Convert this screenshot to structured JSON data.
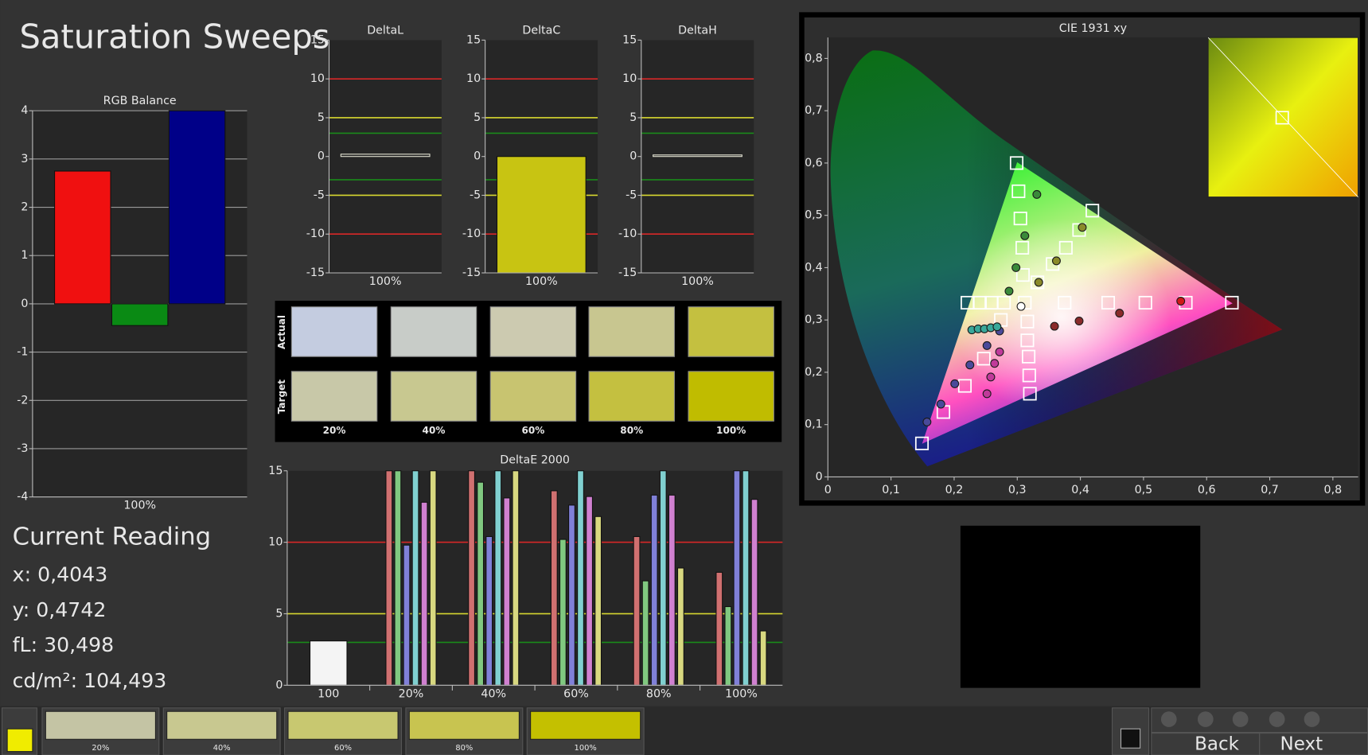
{
  "title": "Saturation Sweeps",
  "current_reading": {
    "title": "Current Reading",
    "lines": [
      "x: 0,4043",
      "y: 0,4742",
      "fL: 30,498",
      "cd/m²: 104,493"
    ]
  },
  "chart_data": [
    {
      "type": "bar",
      "title": "RGB Balance",
      "categories": [
        "100%"
      ],
      "series": [
        {
          "color": "#f01010",
          "values": [
            2.75
          ]
        },
        {
          "color": "#0a8a14",
          "values": [
            -0.45
          ]
        },
        {
          "color": "#000088",
          "values": [
            4
          ]
        }
      ],
      "ylim": [
        -4,
        4
      ],
      "yticks": [
        -4,
        -3,
        -2,
        -1,
        0,
        1,
        2,
        3,
        4
      ],
      "grid": true
    },
    {
      "type": "bar",
      "title": "DeltaL",
      "categories": [
        "100%"
      ],
      "values": [
        0.3
      ],
      "color": "#2a2a2a",
      "outline": "#e0e0d0",
      "ylim": [
        -15,
        15
      ],
      "yticks": [
        -15,
        -10,
        -5,
        0,
        5,
        10,
        15
      ],
      "grid": false,
      "reference_lines": [
        {
          "value": 10,
          "color": "#d82828"
        },
        {
          "value": 5,
          "color": "#d8d830"
        },
        {
          "value": 3,
          "color": "#1a8a1a"
        },
        {
          "value": -3,
          "color": "#1a8a1a"
        },
        {
          "value": -5,
          "color": "#d8d830"
        },
        {
          "value": -10,
          "color": "#d82828"
        }
      ]
    },
    {
      "type": "bar",
      "title": "DeltaC",
      "categories": [
        "100%"
      ],
      "values": [
        -15
      ],
      "color": "#c8c412",
      "outline": "#111111",
      "ylim": [
        -15,
        15
      ],
      "yticks": [
        -15,
        -10,
        -5,
        0,
        5,
        10,
        15
      ],
      "grid": false,
      "reference_lines": [
        {
          "value": 10,
          "color": "#d82828"
        },
        {
          "value": 5,
          "color": "#d8d830"
        },
        {
          "value": 3,
          "color": "#1a8a1a"
        },
        {
          "value": -3,
          "color": "#1a8a1a"
        },
        {
          "value": -5,
          "color": "#d8d830"
        },
        {
          "value": -10,
          "color": "#d82828"
        }
      ]
    },
    {
      "type": "bar",
      "title": "DeltaH",
      "categories": [
        "100%"
      ],
      "values": [
        0.2
      ],
      "color": "#2a2a2a",
      "outline": "#e0e0d0",
      "ylim": [
        -15,
        15
      ],
      "yticks": [
        -15,
        -10,
        -5,
        0,
        5,
        10,
        15
      ],
      "grid": false,
      "reference_lines": [
        {
          "value": 10,
          "color": "#d82828"
        },
        {
          "value": 5,
          "color": "#d8d830"
        },
        {
          "value": 3,
          "color": "#1a8a1a"
        },
        {
          "value": -3,
          "color": "#1a8a1a"
        },
        {
          "value": -5,
          "color": "#d8d830"
        },
        {
          "value": -10,
          "color": "#d82828"
        }
      ]
    },
    {
      "type": "bar",
      "title": "DeltaE 2000",
      "categories": [
        "100",
        "20%",
        "40%",
        "60%",
        "80%",
        "100%"
      ],
      "series": [
        {
          "color": "#f4f4f4",
          "values": [
            3.1,
            null,
            null,
            null,
            null,
            null
          ]
        },
        {
          "color": "#d07070",
          "values": [
            null,
            15,
            15,
            13.6,
            10.4,
            7.9
          ]
        },
        {
          "color": "#80c880",
          "values": [
            null,
            15,
            14.2,
            10.2,
            7.3,
            5.5
          ]
        },
        {
          "color": "#8080d8",
          "values": [
            null,
            9.8,
            10.4,
            12.6,
            13.3,
            15
          ]
        },
        {
          "color": "#80d0d0",
          "values": [
            null,
            15,
            15,
            15,
            15,
            15
          ]
        },
        {
          "color": "#d080d0",
          "values": [
            null,
            12.8,
            13.1,
            13.2,
            13.3,
            13
          ]
        },
        {
          "color": "#d8d880",
          "values": [
            null,
            15,
            15,
            11.8,
            8.2,
            3.8
          ]
        }
      ],
      "ylim": [
        0,
        15
      ],
      "yticks": [
        0,
        5,
        10,
        15
      ],
      "grid": false,
      "reference_lines": [
        {
          "value": 10,
          "color": "#d82828"
        },
        {
          "value": 5,
          "color": "#d8d830"
        },
        {
          "value": 3,
          "color": "#1a8a1a"
        }
      ]
    },
    {
      "type": "scatter",
      "title": "CIE 1931 xy",
      "xlim": [
        0,
        0.84
      ],
      "ylim": [
        0,
        0.84
      ],
      "xticks": [
        0,
        {
          "value": 0.1,
          "label": "0,1"
        },
        {
          "value": 0.2,
          "label": "0,2"
        },
        {
          "value": 0.3,
          "label": "0,3"
        },
        {
          "value": 0.4,
          "label": "0,4"
        },
        {
          "value": 0.5,
          "label": "0,5"
        },
        {
          "value": 0.6,
          "label": "0,6"
        },
        {
          "value": 0.7,
          "label": "0,7"
        },
        {
          "value": 0.8,
          "label": "0,8"
        }
      ],
      "yticks": [
        0,
        {
          "value": 0.1,
          "label": "0,1"
        },
        {
          "value": 0.2,
          "label": "0,2"
        },
        {
          "value": 0.3,
          "label": "0,3"
        },
        {
          "value": 0.4,
          "label": "0,4"
        },
        {
          "value": 0.5,
          "label": "0,5"
        },
        {
          "value": 0.6,
          "label": "0,6"
        },
        {
          "value": 0.7,
          "label": "0,7"
        },
        {
          "value": 0.8,
          "label": "0,8"
        }
      ],
      "series": [
        {
          "marker": "square",
          "color": "#ffffff",
          "x": [
            0.299,
            0.419,
            0.149,
            0.64,
            0.312,
            0.302,
            0.305,
            0.308,
            0.309,
            0.375,
            0.444,
            0.503,
            0.567,
            0.274,
            0.247,
            0.217,
            0.183,
            0.221,
            0.241,
            0.259,
            0.279,
            0.316,
            0.316,
            0.318,
            0.319,
            0.32,
            0.332,
            0.356,
            0.377,
            0.398
          ],
          "values": [
            0.6,
            0.509,
            0.064,
            0.333,
            0.333,
            0.546,
            0.494,
            0.438,
            0.386,
            0.333,
            0.333,
            0.333,
            0.333,
            0.3,
            0.226,
            0.174,
            0.124,
            0.333,
            0.333,
            0.333,
            0.333,
            0.297,
            0.261,
            0.23,
            0.194,
            0.159,
            0.372,
            0.407,
            0.438,
            0.472
          ]
        },
        {
          "marker": "circle",
          "x": [
            0.331,
            0.312,
            0.298,
            0.287,
            0.403,
            0.362,
            0.334,
            0.559,
            0.462,
            0.398,
            0.359,
            0.157,
            0.179,
            0.201,
            0.225,
            0.252,
            0.272,
            0.228,
            0.238,
            0.248,
            0.258,
            0.268,
            0.252,
            0.258,
            0.264,
            0.272,
            0.306
          ],
          "values": [
            0.54,
            0.461,
            0.4,
            0.355,
            0.477,
            0.413,
            0.372,
            0.336,
            0.313,
            0.298,
            0.288,
            0.105,
            0.139,
            0.178,
            0.214,
            0.251,
            0.279,
            0.281,
            0.283,
            0.283,
            0.285,
            0.287,
            0.159,
            0.191,
            0.217,
            0.239,
            0.326
          ],
          "colors": [
            "#3a8a3a",
            "#3a8a3a",
            "#3a8a3a",
            "#3a8a3a",
            "#8a8a2a",
            "#8a8a2a",
            "#8a8a2a",
            "#d01818",
            "#8a2a2a",
            "#8a2a2a",
            "#8a2a2a",
            "#4a4a9a",
            "#4a4a9a",
            "#4a4a9a",
            "#4a4a9a",
            "#4a4a9a",
            "#4a4a9a",
            "#3aa89a",
            "#3aa89a",
            "#3aa89a",
            "#3aa89a",
            "#3aa89a",
            "#c03a9a",
            "#c03a9a",
            "#c03a9a",
            "#c03a9a",
            "#ffffff"
          ]
        }
      ]
    }
  ],
  "patches": {
    "row_labels": [
      "Actual",
      "Target"
    ],
    "columns": [
      {
        "label": "20%",
        "actual": "#c4cce0",
        "target": "#c8c8a8"
      },
      {
        "label": "40%",
        "actual": "#c8ccc8",
        "target": "#c8c890"
      },
      {
        "label": "60%",
        "actual": "#cccab0",
        "target": "#c8c470"
      },
      {
        "label": "80%",
        "actual": "#c8c690",
        "target": "#c4c040"
      },
      {
        "label": "100%",
        "actual": "#c4c040",
        "target": "#c0bc00"
      }
    ]
  },
  "footer": {
    "current_color": "#f0ec00",
    "patches": [
      {
        "label": "20%",
        "color": "#c4c4a4"
      },
      {
        "label": "40%",
        "color": "#c8c890"
      },
      {
        "label": "60%",
        "color": "#c8c870"
      },
      {
        "label": "80%",
        "color": "#c8c450"
      },
      {
        "label": "100%",
        "color": "#c4c000"
      }
    ],
    "back": "Back",
    "next": "Next"
  }
}
